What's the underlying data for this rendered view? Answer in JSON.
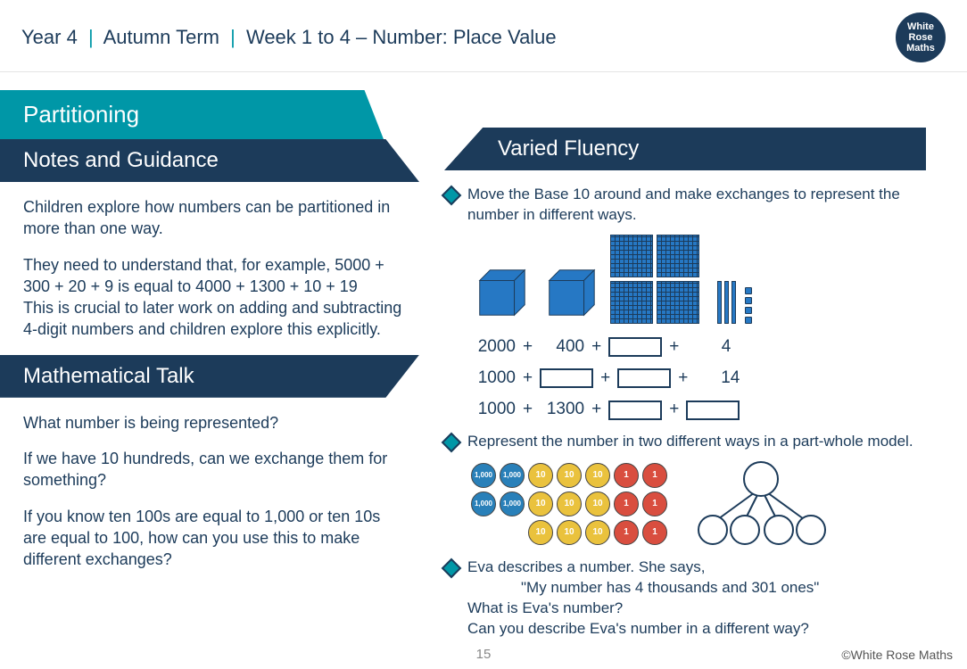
{
  "header": {
    "year": "Year 4",
    "term": "Autumn Term",
    "week": "Week 1 to 4 – Number: Place Value"
  },
  "logo": {
    "line1": "White",
    "line2": "Rose",
    "line3": "Maths"
  },
  "title_banner": "Partitioning",
  "sections": {
    "notes_title": "Notes and Guidance",
    "notes_p1": "Children explore how numbers can be partitioned in more than one way.",
    "notes_p2": "They need to understand that, for example, 5000 + 300 + 20 + 9 is equal to 4000 + 1300 + 10 + 19",
    "notes_p3": "This is crucial to later work on adding and subtracting 4-digit numbers and children explore this explicitly.",
    "talk_title": "Mathematical Talk",
    "talk_q1": "What number is being represented?",
    "talk_q2": "If we have 10 hundreds, can we exchange them for something?",
    "talk_q3": "If you know ten 100s are equal to 1,000 or ten 10s are equal to 100, how can you use this to make different exchanges?",
    "fluency_title": "Varied Fluency",
    "vf1": "Move the Base 10 around and make exchanges to represent the number in different ways.",
    "vf2": "Represent the number in two different ways in a part-whole model.",
    "vf3_intro": "Eva describes a number. She says,",
    "vf3_quote": "\"My number has 4 thousands and 301 ones\"",
    "vf3_q1": "What is Eva's number?",
    "vf3_q2": "Can you describe Eva's number in a different way?"
  },
  "base10": {
    "thousands": 2,
    "hundreds": 4,
    "tens": 3,
    "ones": 4,
    "cube_color": "#2678c4",
    "outline_color": "#1c3b5a"
  },
  "equations": {
    "rows": [
      {
        "cells": [
          "2000",
          "+",
          "400",
          "+",
          "[blank]",
          "+",
          "4"
        ]
      },
      {
        "cells": [
          "1000",
          "+",
          "[blank]",
          "+",
          "[blank]",
          "+",
          "14"
        ]
      },
      {
        "cells": [
          "1000",
          "+",
          "1300",
          "+",
          "[blank]",
          "+",
          "[blank]"
        ]
      }
    ]
  },
  "counters": {
    "thousands": {
      "count": 4,
      "label": "1,000",
      "color": "#2980b9"
    },
    "tens": {
      "count": 9,
      "label": "10",
      "color": "#eac23d"
    },
    "ones": {
      "count": 6,
      "label": "1",
      "color": "#d94e3f"
    }
  },
  "colors": {
    "teal": "#0097a7",
    "navy": "#1c3b5a",
    "text": "#1c3b5a",
    "bg": "#ffffff"
  },
  "page_number": "15",
  "copyright": "©White Rose Maths"
}
